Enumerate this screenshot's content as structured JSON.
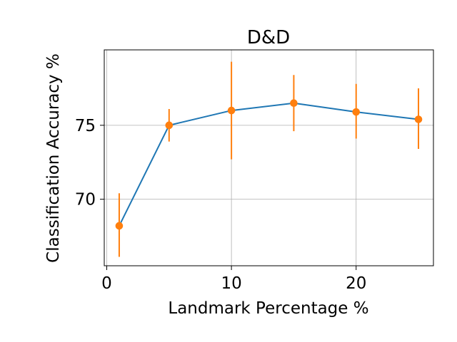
{
  "chart_data": {
    "type": "line",
    "title": "D&D",
    "xlabel": "Landmark Percentage %",
    "ylabel": "Classification Accuracy %",
    "xlim": [
      -0.2,
      26.2
    ],
    "ylim": [
      65.5,
      80.1
    ],
    "xticks": [
      0,
      10,
      20
    ],
    "yticks": [
      70,
      75
    ],
    "grid": true,
    "series": [
      {
        "x": [
          1,
          5,
          10,
          15,
          20,
          25
        ],
        "y": [
          68.2,
          75.0,
          76.0,
          76.5,
          75.9,
          75.4
        ],
        "yerr_low": [
          66.1,
          73.9,
          72.7,
          74.6,
          74.1,
          73.4
        ],
        "yerr_high": [
          70.4,
          76.1,
          79.3,
          78.4,
          77.8,
          77.5
        ],
        "line_color": "#1f77b4",
        "marker_color": "#ff7f0e",
        "errorbar_color": "#ff7f0e"
      }
    ]
  }
}
